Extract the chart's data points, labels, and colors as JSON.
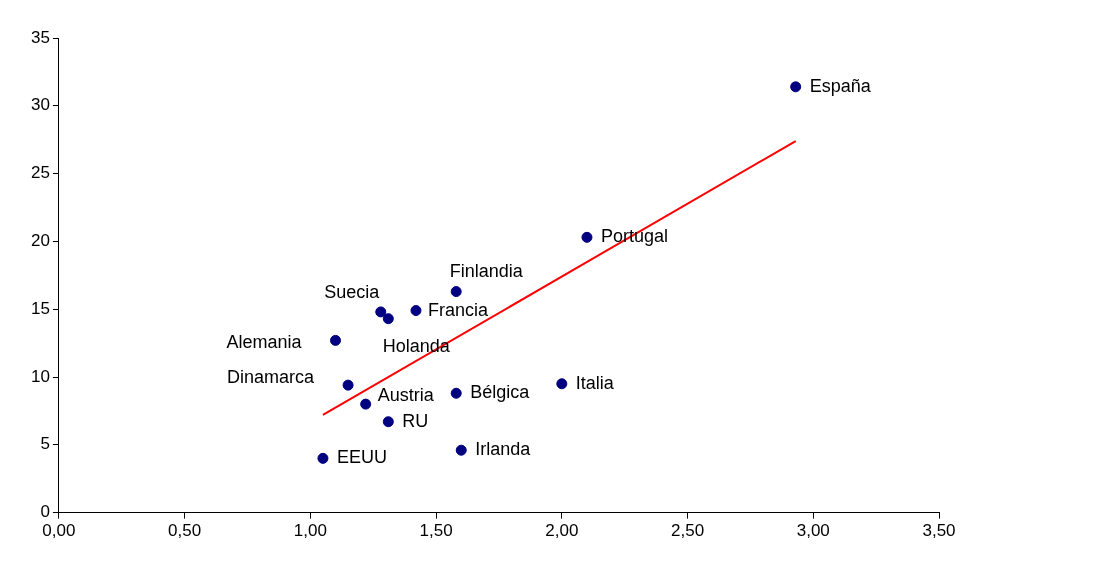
{
  "chart_data": {
    "type": "scatter",
    "xlim": [
      0,
      3.5
    ],
    "ylim": [
      0,
      35
    ],
    "xticks": [
      {
        "value": 0,
        "label": "0,00"
      },
      {
        "value": 0.5,
        "label": "0,50"
      },
      {
        "value": 1,
        "label": "1,00"
      },
      {
        "value": 1.5,
        "label": "1,50"
      },
      {
        "value": 2,
        "label": "2,00"
      },
      {
        "value": 2.5,
        "label": "2,50"
      },
      {
        "value": 3,
        "label": "3,00"
      },
      {
        "value": 3.5,
        "label": "3,50"
      }
    ],
    "yticks": [
      0,
      5,
      10,
      15,
      20,
      25,
      30,
      35
    ],
    "marker": "circle",
    "legend": false,
    "series": [
      {
        "name": "España",
        "color": "#000080",
        "x": [
          2.93
        ],
        "values": [
          31.4
        ]
      },
      {
        "name": "Portugal",
        "color": "#000080",
        "x": [
          2.1
        ],
        "values": [
          20.3
        ]
      },
      {
        "name": "Finlandia",
        "color": "#000080",
        "x": [
          1.58
        ],
        "values": [
          16.3
        ]
      },
      {
        "name": "Suecia",
        "color": "#000080",
        "x": [
          1.28
        ],
        "values": [
          14.8
        ]
      },
      {
        "name": "Holanda",
        "color": "#000080",
        "x": [
          1.31
        ],
        "values": [
          14.3
        ]
      },
      {
        "name": "Francia",
        "color": "#000080",
        "x": [
          1.42
        ],
        "values": [
          14.9
        ]
      },
      {
        "name": "Alemania",
        "color": "#000080",
        "x": [
          1.1
        ],
        "values": [
          12.7
        ]
      },
      {
        "name": "Dinamarca",
        "color": "#000080",
        "x": [
          1.15
        ],
        "values": [
          9.4
        ]
      },
      {
        "name": "Austria",
        "color": "#000080",
        "x": [
          1.22
        ],
        "values": [
          8.0
        ]
      },
      {
        "name": "Bélgica",
        "color": "#000080",
        "x": [
          1.58
        ],
        "values": [
          8.8
        ]
      },
      {
        "name": "Italia",
        "color": "#000080",
        "x": [
          2.0
        ],
        "values": [
          9.5
        ]
      },
      {
        "name": "RU",
        "color": "#000080",
        "x": [
          1.31
        ],
        "values": [
          6.7
        ]
      },
      {
        "name": "Irlanda",
        "color": "#000080",
        "x": [
          1.6
        ],
        "values": [
          4.6
        ]
      },
      {
        "name": "EEUU",
        "color": "#000080",
        "x": [
          1.05
        ],
        "values": [
          4.0
        ]
      },
      {
        "type": "line",
        "marker": "none",
        "color": "#ff0000",
        "x": [
          1.05,
          2.93
        ],
        "values": [
          7.2,
          27.4
        ]
      }
    ]
  }
}
